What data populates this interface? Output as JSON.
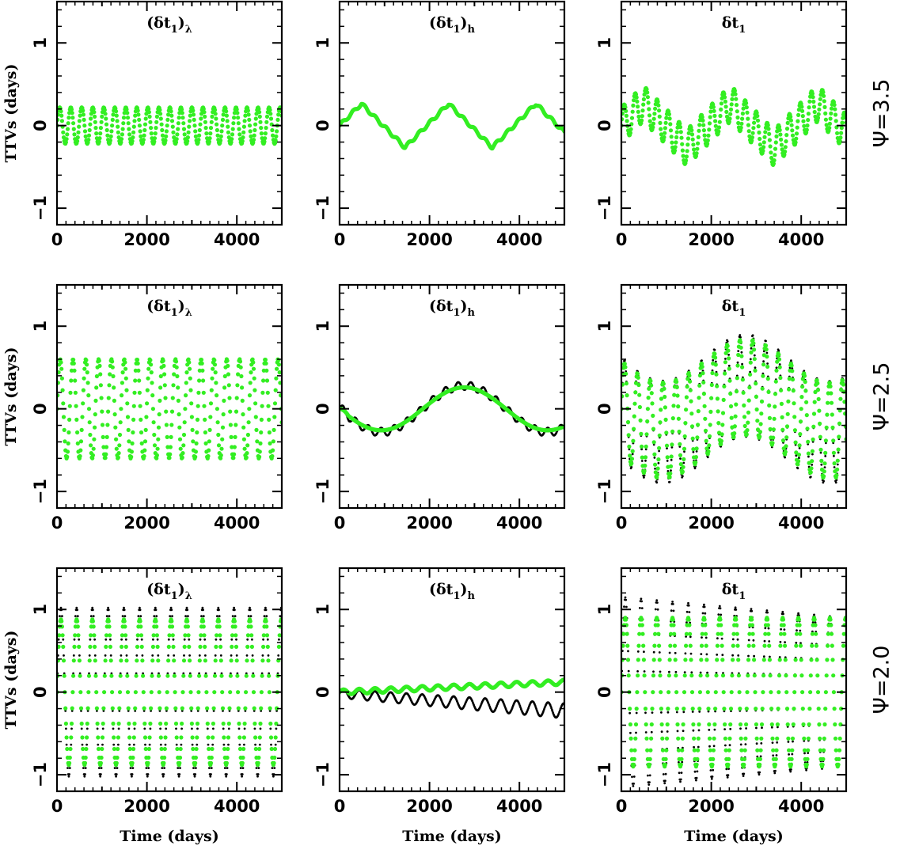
{
  "colors": {
    "model": "#000000",
    "approximation": "#33ee22",
    "frame": "#000000"
  },
  "chart_data": [
    {
      "type": "scatter",
      "row": 0,
      "col": 0,
      "row_label": "Ψ=3.5",
      "title_main": "(δt",
      "title_sub1": "1",
      "title_close": ")",
      "title_sub2": "λ",
      "title_full": "(δt1)λ",
      "xlabel": "",
      "ylabel": "TTVs (days)",
      "xlim": [
        0,
        5000
      ],
      "ylim": [
        -1.2,
        1.5
      ],
      "xticks": [
        "0",
        "2000",
        "4000"
      ],
      "yticks": [
        "−1",
        "0",
        "1"
      ],
      "series": [
        {
          "color": "black",
          "shape": "sin",
          "amp": 0.22,
          "period": 245,
          "trend": "flat"
        },
        {
          "color": "green",
          "shape": "sin",
          "amp": 0.22,
          "period": 245,
          "trend": "flat"
        }
      ]
    },
    {
      "type": "scatter",
      "row": 0,
      "col": 1,
      "row_label": "Ψ=3.5",
      "title_main": "(δt",
      "title_sub1": "1",
      "title_close": ")",
      "title_sub2": "h",
      "title_full": "(δt1)h",
      "xlabel": "",
      "ylabel": "",
      "xlim": [
        0,
        5000
      ],
      "ylim": [
        -1.2,
        1.5
      ],
      "xticks": [
        "0",
        "2000",
        "4000"
      ],
      "yticks": [
        "−1",
        "0",
        "1"
      ],
      "series": [
        {
          "color": "black",
          "shape": "tri",
          "amp": 0.27,
          "period": 1940,
          "small_amp": 0.02
        },
        {
          "color": "green",
          "shape": "tri",
          "amp": 0.27,
          "period": 1940,
          "small_amp": 0.02
        }
      ]
    },
    {
      "type": "scatter",
      "row": 0,
      "col": 2,
      "row_label": "Ψ=3.5",
      "title_main": "δt",
      "title_sub1": "1",
      "title_close": "",
      "title_sub2": "",
      "title_full": "δt1",
      "xlabel": "",
      "ylabel": "",
      "xlim": [
        0,
        5000
      ],
      "ylim": [
        -1.2,
        1.5
      ],
      "xticks": [
        "0",
        "2000",
        "4000"
      ],
      "yticks": [
        "−1",
        "0",
        "1"
      ],
      "series": [
        {
          "color": "black",
          "shape": "sum",
          "amp": 0.22,
          "period": 245,
          "amp2": 0.27,
          "period2": 1940
        },
        {
          "color": "green",
          "shape": "sum",
          "amp": 0.22,
          "period": 245,
          "amp2": 0.27,
          "period2": 1940
        }
      ]
    },
    {
      "type": "scatter",
      "row": 1,
      "col": 0,
      "row_label": "Ψ=2.5",
      "title_main": "(δt",
      "title_sub1": "1",
      "title_close": ")",
      "title_sub2": "λ",
      "title_full": "(δt1)λ",
      "xlabel": "",
      "ylabel": "TTVs (days)",
      "xlim": [
        0,
        5000
      ],
      "ylim": [
        -1.2,
        1.5
      ],
      "xticks": [
        "0",
        "2000",
        "4000"
      ],
      "yticks": [
        "−1",
        "0",
        "1"
      ],
      "series": [
        {
          "color": "black",
          "shape": "sin",
          "amp": 0.6,
          "period": 285,
          "trend": "flat"
        },
        {
          "color": "green",
          "shape": "sin",
          "amp": 0.6,
          "period": 285,
          "trend": "flat"
        }
      ]
    },
    {
      "type": "scatter",
      "row": 1,
      "col": 1,
      "row_label": "Ψ=2.5",
      "title_main": "(δt",
      "title_sub1": "1",
      "title_close": ")",
      "title_sub2": "h",
      "title_full": "(δt1)h",
      "xlabel": "",
      "ylabel": "",
      "xlim": [
        0,
        5000
      ],
      "ylim": [
        -1.2,
        1.5
      ],
      "xticks": [
        "0",
        "2000",
        "4000"
      ],
      "yticks": [
        "−1",
        "0",
        "1"
      ],
      "series": [
        {
          "color": "black",
          "shape": "slow",
          "amp": 0.28,
          "period": 3700,
          "small_amp": 0.05
        },
        {
          "color": "green",
          "shape": "slow",
          "amp": 0.26,
          "period": 3700,
          "small_amp": 0.0
        }
      ]
    },
    {
      "type": "scatter",
      "row": 1,
      "col": 2,
      "row_label": "Ψ=2.5",
      "title_main": "δt",
      "title_sub1": "1",
      "title_close": "",
      "title_sub2": "",
      "title_full": "δt1",
      "xlabel": "",
      "ylabel": "",
      "xlim": [
        0,
        5000
      ],
      "ylim": [
        -1.2,
        1.5
      ],
      "xticks": [
        "0",
        "2000",
        "4000"
      ],
      "yticks": [
        "−1",
        "0",
        "1"
      ],
      "series": [
        {
          "color": "black",
          "shape": "sumslow",
          "amp": 0.62,
          "period": 285,
          "amp2": 0.28,
          "period2": 3700
        },
        {
          "color": "green",
          "shape": "sumslow",
          "amp": 0.58,
          "period": 285,
          "amp2": 0.26,
          "period2": 3700
        }
      ]
    },
    {
      "type": "scatter",
      "row": 2,
      "col": 0,
      "row_label": "Ψ=2.0",
      "title_main": "(δt",
      "title_sub1": "1",
      "title_close": ")",
      "title_sub2": "λ",
      "title_full": "(δt1)λ",
      "xlabel": "Time (days)",
      "ylabel": "TTVs (days)",
      "xlim": [
        0,
        5000
      ],
      "ylim": [
        -1.2,
        1.5
      ],
      "xticks": [
        "0",
        "2000",
        "4000"
      ],
      "yticks": [
        "−1",
        "0",
        "1"
      ],
      "series": [
        {
          "color": "black",
          "shape": "sin",
          "amp": 1.02,
          "period": 350,
          "trend": "flat"
        },
        {
          "color": "green",
          "shape": "sin",
          "amp": 0.88,
          "period": 350,
          "trend": "flat"
        }
      ]
    },
    {
      "type": "scatter",
      "row": 2,
      "col": 1,
      "row_label": "Ψ=2.0",
      "title_main": "(δt",
      "title_sub1": "1",
      "title_close": ")",
      "title_sub2": "h",
      "title_full": "(δt1)h",
      "xlabel": "Time (days)",
      "ylabel": "",
      "xlim": [
        0,
        5000
      ],
      "ylim": [
        -1.2,
        1.5
      ],
      "xticks": [
        "0",
        "2000",
        "4000"
      ],
      "yticks": [
        "−1",
        "0",
        "1"
      ],
      "series": [
        {
          "color": "black",
          "shape": "hdrift",
          "amp": 0.18,
          "period": 350,
          "drift": -0.2
        },
        {
          "color": "green",
          "shape": "hgreen",
          "amp": 0.03,
          "period": 350,
          "drift": 0.12
        }
      ]
    },
    {
      "type": "scatter",
      "row": 2,
      "col": 2,
      "row_label": "Ψ=2.0",
      "title_main": "δt",
      "title_sub1": "1",
      "title_close": "",
      "title_sub2": "",
      "title_full": "δt1",
      "xlabel": "Time (days)",
      "ylabel": "",
      "xlim": [
        0,
        5000
      ],
      "ylim": [
        -1.2,
        1.5
      ],
      "xticks": [
        "0",
        "2000",
        "4000"
      ],
      "yticks": [
        "−1",
        "0",
        "1"
      ],
      "series": [
        {
          "color": "black",
          "shape": "decay",
          "amp": 1.15,
          "amp_end": 0.9,
          "period": 350
        },
        {
          "color": "green",
          "shape": "decay",
          "amp": 0.9,
          "amp_end": 0.9,
          "period": 350
        }
      ]
    }
  ],
  "row_labels": [
    "Ψ=3.5",
    "Ψ=2.5",
    "Ψ=2.0"
  ]
}
